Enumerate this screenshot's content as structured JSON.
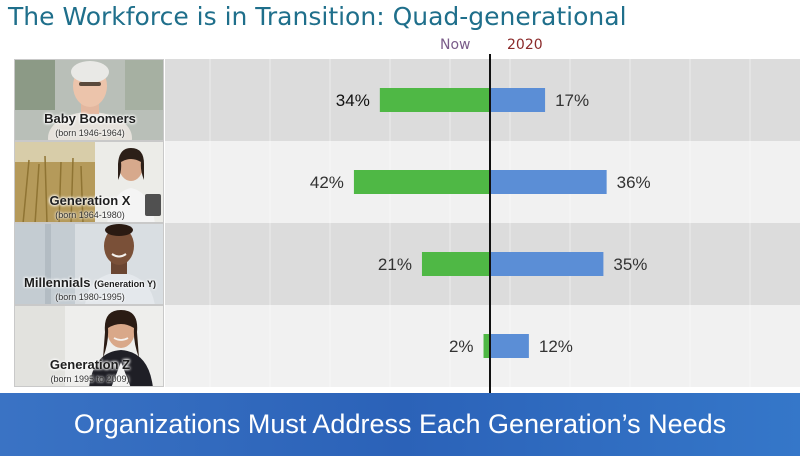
{
  "title": "The Workforce is in Transition: Quad-generational",
  "footer": "Organizations Must Address Each Generation’s Needs",
  "generations": [
    {
      "name": "Baby Boomers",
      "name_small": "",
      "born": "(born 1946-1964)"
    },
    {
      "name": "Generation X",
      "name_small": "",
      "born": "(born 1964-1980)"
    },
    {
      "name": "Millennials",
      "name_small": "(Generation Y)",
      "born": "(born 1980-1995)"
    },
    {
      "name": "Generation Z",
      "name_small": "",
      "born": "(born 1995 to 2009)"
    }
  ],
  "chart_data": {
    "type": "bar",
    "orientation": "horizontal-diverging",
    "categories": [
      "Baby Boomers",
      "Generation X",
      "Millennials",
      "Generation Z"
    ],
    "series": [
      {
        "name": "Now",
        "values": [
          34,
          42,
          21,
          2
        ],
        "labels": [
          "34%",
          "42%",
          "21%",
          "2%"
        ],
        "color": "#4fb845",
        "direction": "left"
      },
      {
        "name": "2020",
        "values": [
          17,
          36,
          35,
          12
        ],
        "labels": [
          "17%",
          "36%",
          "35%",
          "12%"
        ],
        "color": "#5b8ed6",
        "direction": "right"
      }
    ],
    "legend": [
      "Now",
      "2020"
    ],
    "legend_colors": {
      "Now": "#7a5c8a",
      "2020": "#8b2a2a"
    },
    "unit": "%",
    "grid": true
  }
}
